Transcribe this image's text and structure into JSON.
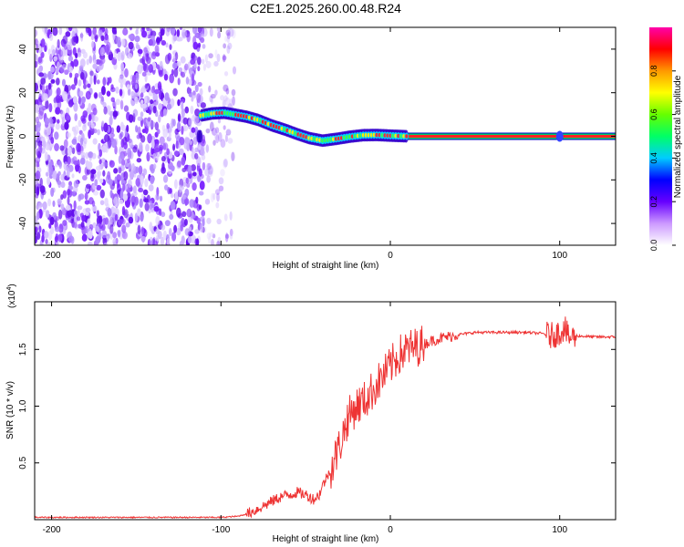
{
  "title": "C2E1.2025.260.00.48.R24",
  "chart_data": [
    {
      "type": "heatmap",
      "xlabel": "Height of straight line (km)",
      "ylabel": "Frequency (Hz)",
      "xlim": [
        -210,
        133
      ],
      "ylim": [
        -50,
        50
      ],
      "xticks": [
        -200,
        -100,
        0,
        100
      ],
      "yticks": [
        -40,
        -20,
        0,
        20,
        40
      ],
      "colorbar": {
        "label": "Normalized spectral amplitude",
        "range": [
          0,
          1
        ],
        "ticks": [
          "0.0",
          "0.2",
          "0.4",
          "0.6",
          "0.8"
        ],
        "colors": [
          "#ffffff",
          "#cc99ff",
          "#6600ff",
          "#0000ff",
          "#00ccff",
          "#00ff66",
          "#66ff00",
          "#ffff00",
          "#ff9900",
          "#ff0000",
          "#ff00aa"
        ]
      },
      "noise_region": {
        "x": [
          -210,
          -92
        ],
        "y": [
          -50,
          50
        ]
      },
      "signal_track": [
        {
          "x": -112,
          "f": 9.5
        },
        {
          "x": -105,
          "f": 10.5
        },
        {
          "x": -98,
          "f": 10.8
        },
        {
          "x": -92,
          "f": 10.0
        },
        {
          "x": -85,
          "f": 9.0
        },
        {
          "x": -78,
          "f": 7.5
        },
        {
          "x": -70,
          "f": 5.0
        },
        {
          "x": -62,
          "f": 3.0
        },
        {
          "x": -55,
          "f": 1.0
        },
        {
          "x": -48,
          "f": -0.8
        },
        {
          "x": -40,
          "f": -2.0
        },
        {
          "x": -32,
          "f": -1.2
        },
        {
          "x": -24,
          "f": -0.2
        },
        {
          "x": -16,
          "f": 0.5
        },
        {
          "x": -8,
          "f": 0.6
        },
        {
          "x": 0,
          "f": 0.3
        },
        {
          "x": 10,
          "f": 0.0
        },
        {
          "x": 133,
          "f": 0.0
        }
      ]
    },
    {
      "type": "line",
      "xlabel": "Height of straight line (km)",
      "ylabel": "SNR (10 * v/v)",
      "yscale_label": "(x10",
      "yscale_exp": "4",
      "xlim": [
        -210,
        133
      ],
      "ylim": [
        0,
        1.92
      ],
      "xticks": [
        -200,
        -100,
        0,
        100
      ],
      "yticks": [
        0.5,
        1.0,
        1.5
      ],
      "ytick_labels": [
        "0.5",
        "1.0",
        "1.5"
      ],
      "series": [
        {
          "color": "#ee3333",
          "x": [
            -210,
            -150,
            -100,
            -90,
            -85,
            -80,
            -75,
            -70,
            -65,
            -60,
            -55,
            -50,
            -45,
            -42,
            -40,
            -35,
            -30,
            -25,
            -20,
            -15,
            -10,
            -5,
            0,
            5,
            10,
            15,
            20,
            25,
            30,
            40,
            50,
            60,
            70,
            80,
            90,
            95,
            100,
            103,
            105,
            110,
            120,
            133
          ],
          "y": [
            0.02,
            0.02,
            0.02,
            0.03,
            0.05,
            0.08,
            0.12,
            0.16,
            0.2,
            0.22,
            0.24,
            0.22,
            0.18,
            0.22,
            0.3,
            0.45,
            0.65,
            0.9,
            1.0,
            1.05,
            1.15,
            1.25,
            1.35,
            1.45,
            1.5,
            1.52,
            1.55,
            1.58,
            1.6,
            1.63,
            1.65,
            1.65,
            1.65,
            1.65,
            1.64,
            1.62,
            1.65,
            1.7,
            1.6,
            1.62,
            1.61,
            1.61
          ]
        }
      ]
    }
  ]
}
